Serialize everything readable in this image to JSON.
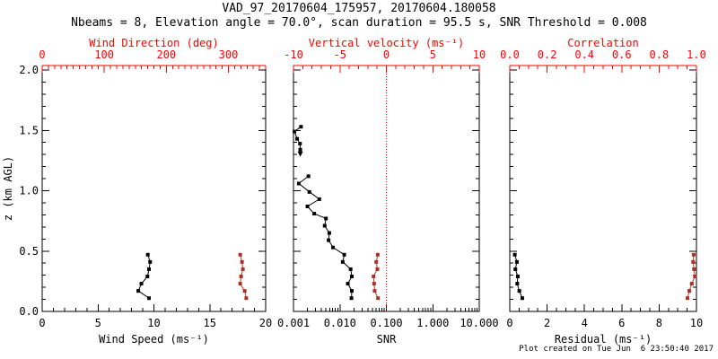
{
  "header": {
    "title": "VAD_97_20170604_175957, 20170604.180058",
    "subtitle": "Nbeams = 8, Elevation angle = 70.0°, scan duration = 95.5 s, SNR Threshold = 0.008"
  },
  "footer": {
    "created": "Plot created on Tue Jun  6 23:50:40 2017"
  },
  "colors": {
    "black": "#000000",
    "axis_red": "#ff0000",
    "red_line": "#c0392b",
    "red_marker": "#a93226",
    "background": "#ffffff"
  },
  "y_axis": {
    "label": "z (km AGL)",
    "range": [
      0,
      2
    ],
    "major_ticks": [
      0.0,
      0.5,
      1.0,
      1.5,
      2.0
    ],
    "tick_labels": [
      "0.0",
      "0.5",
      "1.0",
      "1.5",
      "2.0"
    ],
    "minor_step": 0.1
  },
  "chart_data": [
    {
      "panel": "wind",
      "type": "line",
      "bottom_axis": {
        "label": "Wind Speed (ms⁻¹)",
        "scale": "linear",
        "range": [
          0,
          20
        ],
        "major_ticks": [
          0,
          5,
          10,
          15,
          20
        ],
        "tick_labels": [
          "0",
          "5",
          "10",
          "15",
          "20"
        ],
        "minor_step": 1,
        "color": "black"
      },
      "top_axis": {
        "label": "Wind Direction (deg)",
        "scale": "linear",
        "range": [
          0,
          360
        ],
        "major_ticks": [
          0,
          100,
          200,
          300
        ],
        "tick_labels": [
          "0",
          "100",
          "200",
          "300"
        ],
        "minor_step": 10,
        "color": "red"
      },
      "series": [
        {
          "name": "wind-speed",
          "axis": "bottom",
          "color": "black",
          "marker": "square",
          "z": [
            0.11,
            0.17,
            0.23,
            0.29,
            0.35,
            0.41,
            0.47
          ],
          "values": [
            9.56,
            8.6,
            8.88,
            9.42,
            9.56,
            9.66,
            9.45
          ]
        },
        {
          "name": "wind-direction",
          "axis": "top",
          "color": "red",
          "marker": "square",
          "z": [
            0.11,
            0.17,
            0.23,
            0.29,
            0.35,
            0.41,
            0.47
          ],
          "values": [
            328.7,
            326.2,
            319.0,
            320.4,
            323.3,
            321.9,
            319.0
          ]
        }
      ]
    },
    {
      "panel": "snr",
      "type": "line",
      "bottom_axis": {
        "label": "SNR",
        "scale": "log",
        "range": [
          0.001,
          10
        ],
        "major_ticks": [
          0.001,
          0.01,
          0.1,
          1,
          10
        ],
        "tick_labels": [
          "0.001",
          "0.010",
          "0.100",
          "1.000",
          "10.000"
        ],
        "color": "black"
      },
      "top_axis": {
        "label": "Vertical velocity (ms⁻¹)",
        "scale": "linear",
        "range": [
          -10,
          10
        ],
        "major_ticks": [
          -10,
          -5,
          0,
          5,
          10
        ],
        "tick_labels": [
          "-10",
          "-5",
          "0",
          "5",
          "10"
        ],
        "minor_step": 1,
        "color": "red"
      },
      "reference_line": {
        "axis": "top",
        "value": 0,
        "color": "red",
        "style": "dotted"
      },
      "series": [
        {
          "name": "snr-profile-lower",
          "axis": "bottom",
          "color": "black",
          "marker": "square",
          "z": [
            0.11,
            0.17,
            0.23,
            0.29,
            0.35,
            0.41,
            0.47,
            0.53,
            0.59,
            0.65,
            0.71,
            0.77,
            0.81,
            0.87,
            0.93,
            0.99,
            1.06,
            1.12
          ],
          "values": [
            0.0177,
            0.018,
            0.0148,
            0.018,
            0.017,
            0.0115,
            0.0124,
            0.0071,
            0.0057,
            0.0059,
            0.0047,
            0.005,
            0.0028,
            0.002,
            0.0036,
            0.0022,
            0.0013,
            0.0021
          ]
        },
        {
          "name": "snr-profile-upper",
          "axis": "bottom",
          "color": "black",
          "marker": "square",
          "start_marker": "arrow-down",
          "z": [
            1.34,
            1.39,
            1.43,
            1.49,
            1.53
          ],
          "values": [
            0.0014,
            0.00138,
            0.0012,
            0.00105,
            0.00145
          ]
        },
        {
          "name": "vertical-velocity",
          "axis": "top",
          "color": "red",
          "marker": "square",
          "z": [
            0.11,
            0.17,
            0.23,
            0.29,
            0.35,
            0.41,
            0.47
          ],
          "values": [
            -0.9,
            -1.26,
            -1.32,
            -1.38,
            -0.97,
            -1.09,
            -0.93
          ]
        }
      ]
    },
    {
      "panel": "residual",
      "type": "line",
      "bottom_axis": {
        "label": "Residual (ms⁻¹)",
        "scale": "linear",
        "range": [
          0,
          10
        ],
        "major_ticks": [
          0,
          2,
          4,
          6,
          8,
          10
        ],
        "tick_labels": [
          "0",
          "2",
          "4",
          "6",
          "8",
          "10"
        ],
        "minor_step": 0.5,
        "color": "black"
      },
      "top_axis": {
        "label": "Correlation",
        "scale": "linear",
        "range": [
          0,
          1
        ],
        "major_ticks": [
          0,
          0.2,
          0.4,
          0.6,
          0.8,
          1.0
        ],
        "tick_labels": [
          "0.0",
          "0.2",
          "0.4",
          "0.6",
          "0.8",
          "1.0"
        ],
        "minor_step": 0.05,
        "color": "red"
      },
      "series": [
        {
          "name": "residual",
          "axis": "bottom",
          "color": "black",
          "marker": "square",
          "z": [
            0.11,
            0.17,
            0.23,
            0.29,
            0.35,
            0.41,
            0.47
          ],
          "values": [
            0.67,
            0.51,
            0.4,
            0.43,
            0.3,
            0.38,
            0.27
          ]
        },
        {
          "name": "correlation",
          "axis": "top",
          "color": "red",
          "marker": "square",
          "z": [
            0.11,
            0.17,
            0.23,
            0.29,
            0.35,
            0.41,
            0.47
          ],
          "values": [
            0.952,
            0.962,
            0.975,
            0.992,
            0.987,
            0.982,
            0.985
          ]
        }
      ]
    }
  ]
}
